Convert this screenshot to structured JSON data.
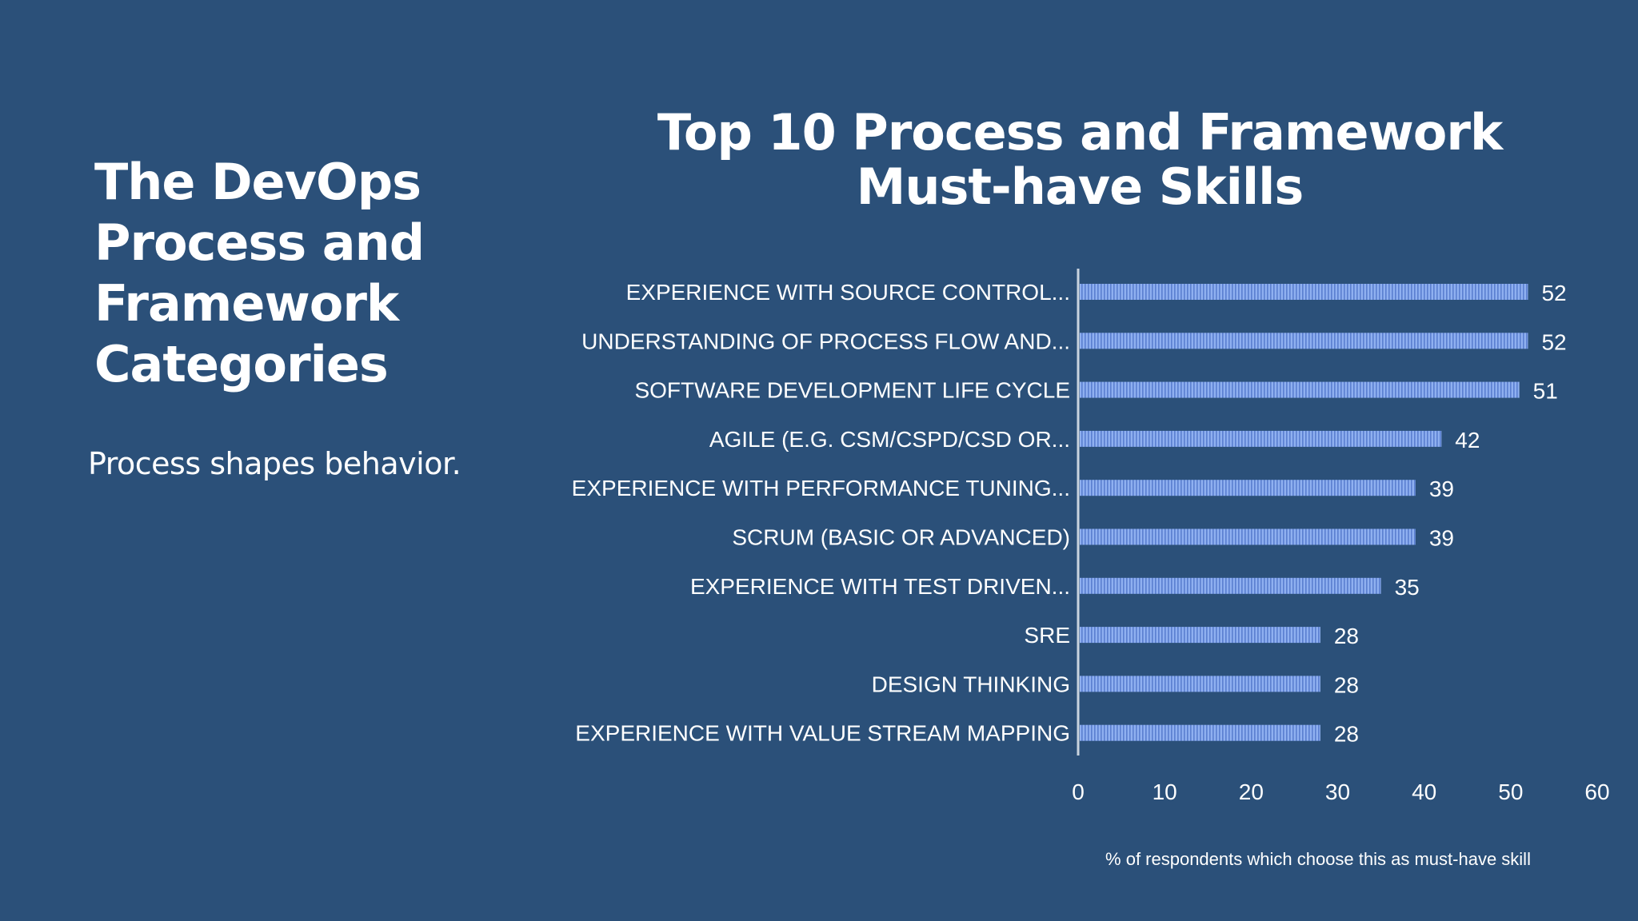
{
  "slide": {
    "heading": "The DevOps Process and Framework Categories",
    "subheading": "Process shapes behavior."
  },
  "chart_data": {
    "type": "bar",
    "orientation": "horizontal",
    "title": "Top 10 Process and Framework Must-have Skills",
    "xlabel": "% of respondents which choose this as must-have skill",
    "ylabel": "",
    "xlim": [
      0,
      60
    ],
    "xticks": [
      0,
      10,
      20,
      30,
      40,
      50,
      60
    ],
    "grid": false,
    "categories": [
      "EXPERIENCE WITH SOURCE CONTROL...",
      "UNDERSTANDING OF PROCESS FLOW AND...",
      "SOFTWARE DEVELOPMENT LIFE CYCLE",
      "AGILE (E.G. CSM/CSPD/CSD OR...",
      "EXPERIENCE WITH PERFORMANCE TUNING...",
      "SCRUM (BASIC OR ADVANCED)",
      "EXPERIENCE WITH TEST DRIVEN...",
      "SRE",
      "DESIGN THINKING",
      "EXPERIENCE WITH VALUE STREAM MAPPING"
    ],
    "values": [
      52,
      52,
      51,
      42,
      39,
      39,
      35,
      28,
      28,
      28
    ],
    "bar_color": "#8fb0f0",
    "bar_stripe_color": "#5a7fd0"
  }
}
